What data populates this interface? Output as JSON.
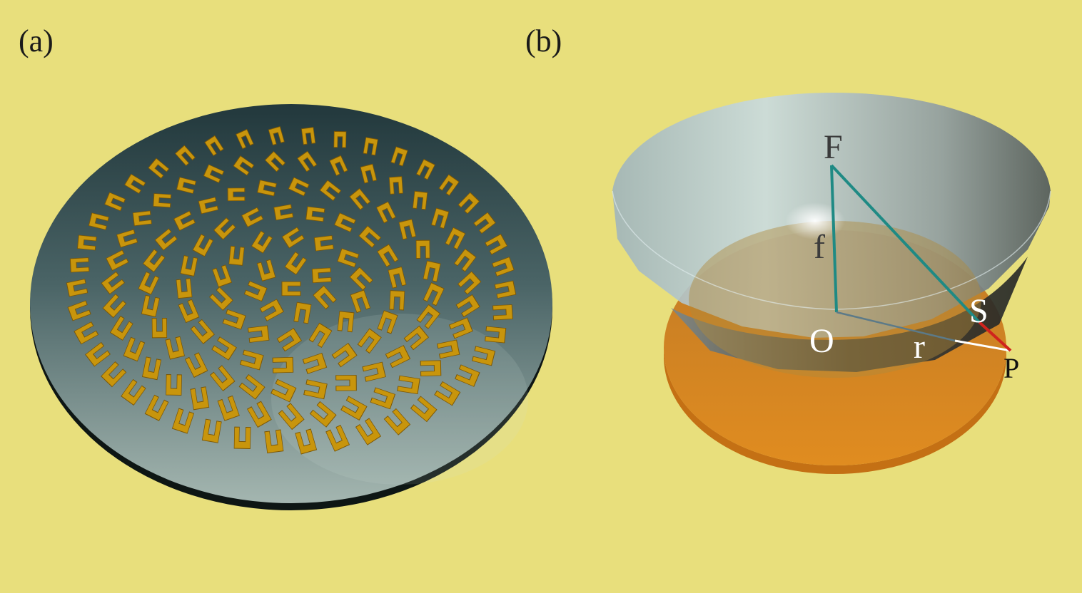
{
  "panels": {
    "a": {
      "label": "(a)"
    },
    "b": {
      "label": "(b)"
    }
  },
  "diagram": {
    "points": {
      "F": "F",
      "O": "O",
      "S": "S",
      "P": "P"
    },
    "segments": {
      "f": "f",
      "r": "r"
    }
  },
  "colors": {
    "background": "#e8df7c",
    "resonator_gold": "#c8950c",
    "disc_orange": "#d8861f",
    "line_teal": "#1f8a84",
    "line_red": "#d0231d",
    "line_white": "#ffffff"
  }
}
